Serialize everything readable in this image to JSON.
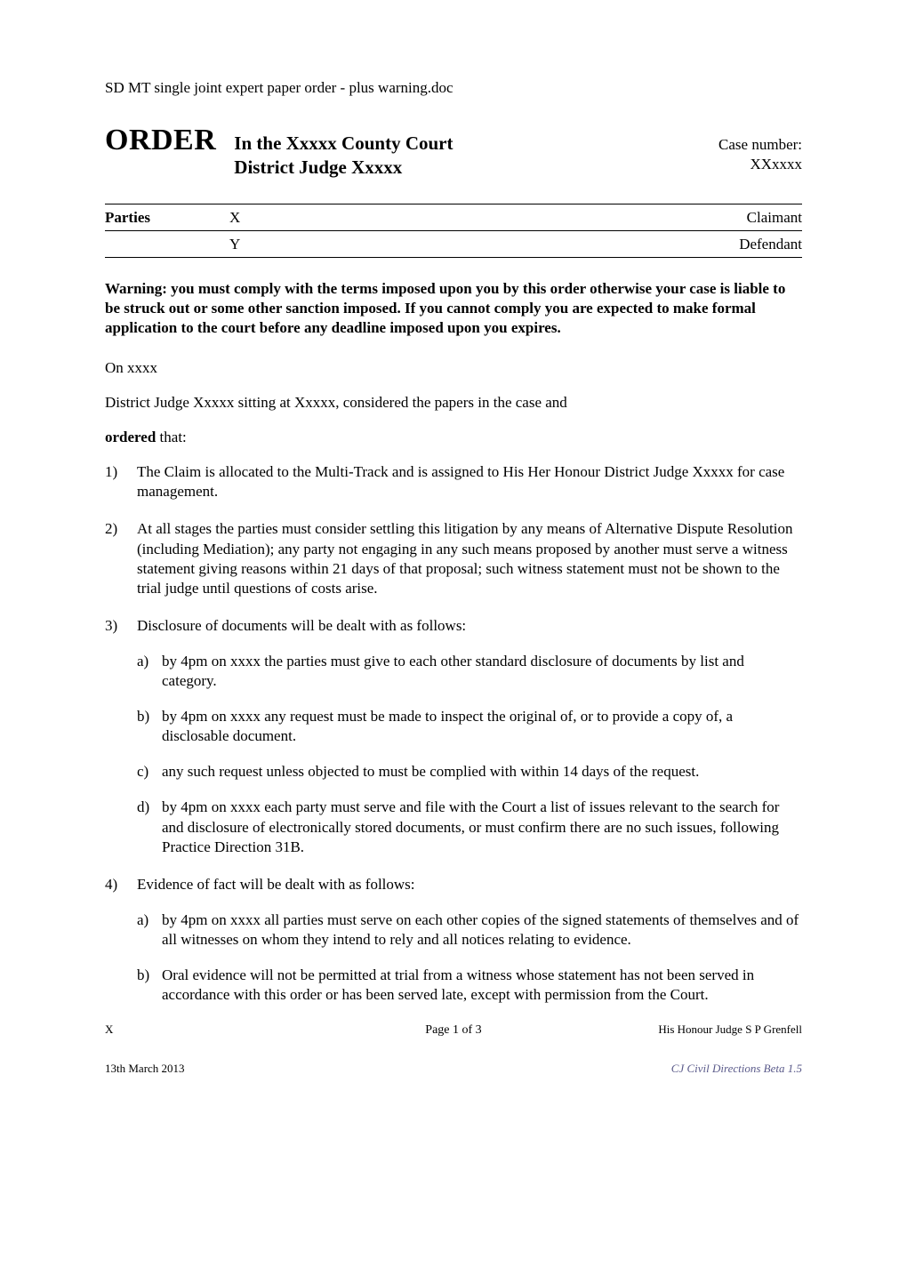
{
  "header_path": "SD MT single joint expert paper order - plus warning.doc",
  "order_word": "ORDER",
  "court_line1": "In the Xxxxx County Court",
  "court_line2": "District Judge Xxxxx",
  "case_label": "Case number:",
  "case_number": "XXxxxx",
  "parties": {
    "label": "Parties",
    "rows": [
      {
        "code": "X",
        "role": "Claimant"
      },
      {
        "code": "Y",
        "role": "Defendant"
      }
    ]
  },
  "warning": "Warning:  you must comply with the terms imposed upon you by this order otherwise your case is liable to be struck out or some other sanction imposed. If you cannot comply you are expected to make formal application to the court before any deadline imposed upon you expires.",
  "on_line": "On xxxx",
  "considered_line": "District Judge Xxxxx sitting at Xxxxx, considered the papers in the case and",
  "ordered_word": "ordered",
  "ordered_suffix": " that:",
  "items": {
    "i1": "The Claim is allocated to the Multi-Track and is assigned to His Her Honour District Judge Xxxxx for case management.",
    "i2": "At all stages the parties must consider settling this litigation by any means of Alternative Dispute Resolution (including Mediation); any party not engaging in any such means proposed by another must serve a witness statement giving reasons within 21 days of that proposal; such witness statement must not be shown to the trial judge until questions of costs arise.",
    "i3_lead": "Disclosure of documents will be dealt with as follows:",
    "i3a": "by 4pm on xxxx the parties must give to each other standard disclosure of documents by list and category.",
    "i3b": "by 4pm on xxxx any request must be made to inspect the original of, or to provide a copy of, a disclosable document.",
    "i3c": "any such request unless objected to must be complied with within 14 days of the request.",
    "i3d": "by 4pm on xxxx each party must serve and file with the Court a list of issues relevant to the search for and disclosure of electronically stored documents, or must confirm there are no such issues, following Practice Direction 31B.",
    "i4_lead": "Evidence of fact will be dealt with as follows:",
    "i4a": "by 4pm on xxxx all parties must  serve on each other copies of the signed statements of themselves and of all witnesses on whom they intend to rely and all notices relating to evidence.",
    "i4b": "Oral evidence will not be permitted at trial from a witness whose statement has not been served in accordance with this order or has been served late, except with permission from the Court."
  },
  "footer": {
    "left": "X",
    "center": "Page 1 of 3",
    "right": "His Honour Judge S P Grenfell",
    "date": "13th March 2013",
    "version": "CJ Civil Directions Beta 1.5"
  }
}
